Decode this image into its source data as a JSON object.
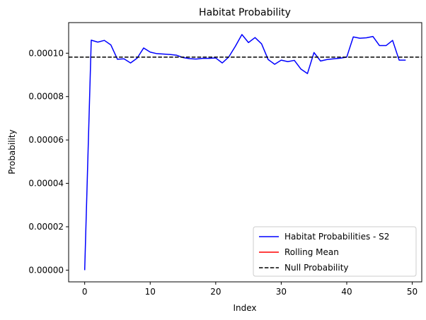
{
  "chart_data": {
    "type": "line",
    "title": "Habitat Probability",
    "xlabel": "Index",
    "ylabel": "Probability",
    "xlim": [
      -2.45,
      51.45
    ],
    "ylim": [
      -5.4e-06,
      0.0001141
    ],
    "x_ticks": [
      0,
      10,
      20,
      30,
      40,
      50
    ],
    "x_tick_labels": [
      "0",
      "10",
      "20",
      "30",
      "40",
      "50"
    ],
    "y_ticks": [
      0,
      2e-05,
      4e-05,
      6e-05,
      8e-05,
      0.0001
    ],
    "y_tick_labels": [
      "0.00000",
      "0.00002",
      "0.00004",
      "0.00006",
      "0.00008",
      "0.00010"
    ],
    "grid": false,
    "legend_position": "lower-right",
    "series": [
      {
        "name": "Habitat Probabilities - S2",
        "color": "#0000ff",
        "style": "solid",
        "x": [
          0,
          1,
          2,
          3,
          4,
          5,
          6,
          7,
          8,
          9,
          10,
          11,
          12,
          13,
          14,
          15,
          16,
          17,
          18,
          19,
          20,
          21,
          22,
          23,
          24,
          25,
          26,
          27,
          28,
          29,
          30,
          31,
          32,
          33,
          34,
          35,
          36,
          37,
          38,
          39,
          40,
          41,
          42,
          43,
          44,
          45,
          46,
          47,
          48,
          49
        ],
        "values": [
          0.0,
          0.000106,
          0.0001051,
          0.0001059,
          0.0001038,
          9.72e-05,
          9.74e-05,
          9.55e-05,
          9.77e-05,
          0.0001024,
          0.0001005,
          9.98e-05,
          9.96e-05,
          9.94e-05,
          9.91e-05,
          9.8e-05,
          9.75e-05,
          9.73e-05,
          9.76e-05,
          9.76e-05,
          9.78e-05,
          9.55e-05,
          9.83e-05,
          0.0001032,
          0.0001086,
          0.0001049,
          0.0001072,
          0.0001043,
          9.71e-05,
          9.49e-05,
          9.68e-05,
          9.61e-05,
          9.67e-05,
          9.27e-05,
          9.06e-05,
          0.0001003,
          9.64e-05,
          9.71e-05,
          9.74e-05,
          9.77e-05,
          9.82e-05,
          0.0001075,
          0.0001069,
          0.0001071,
          0.0001077,
          0.0001035,
          0.0001035,
          0.0001059,
          9.68e-05,
          9.68e-05
        ]
      },
      {
        "name": "Rolling Mean",
        "color": "#ff0000",
        "style": "solid",
        "x": [],
        "values": []
      },
      {
        "name": "Null Probability",
        "color": "#000000",
        "style": "dashed",
        "y_constant": 9.82e-05
      }
    ]
  }
}
